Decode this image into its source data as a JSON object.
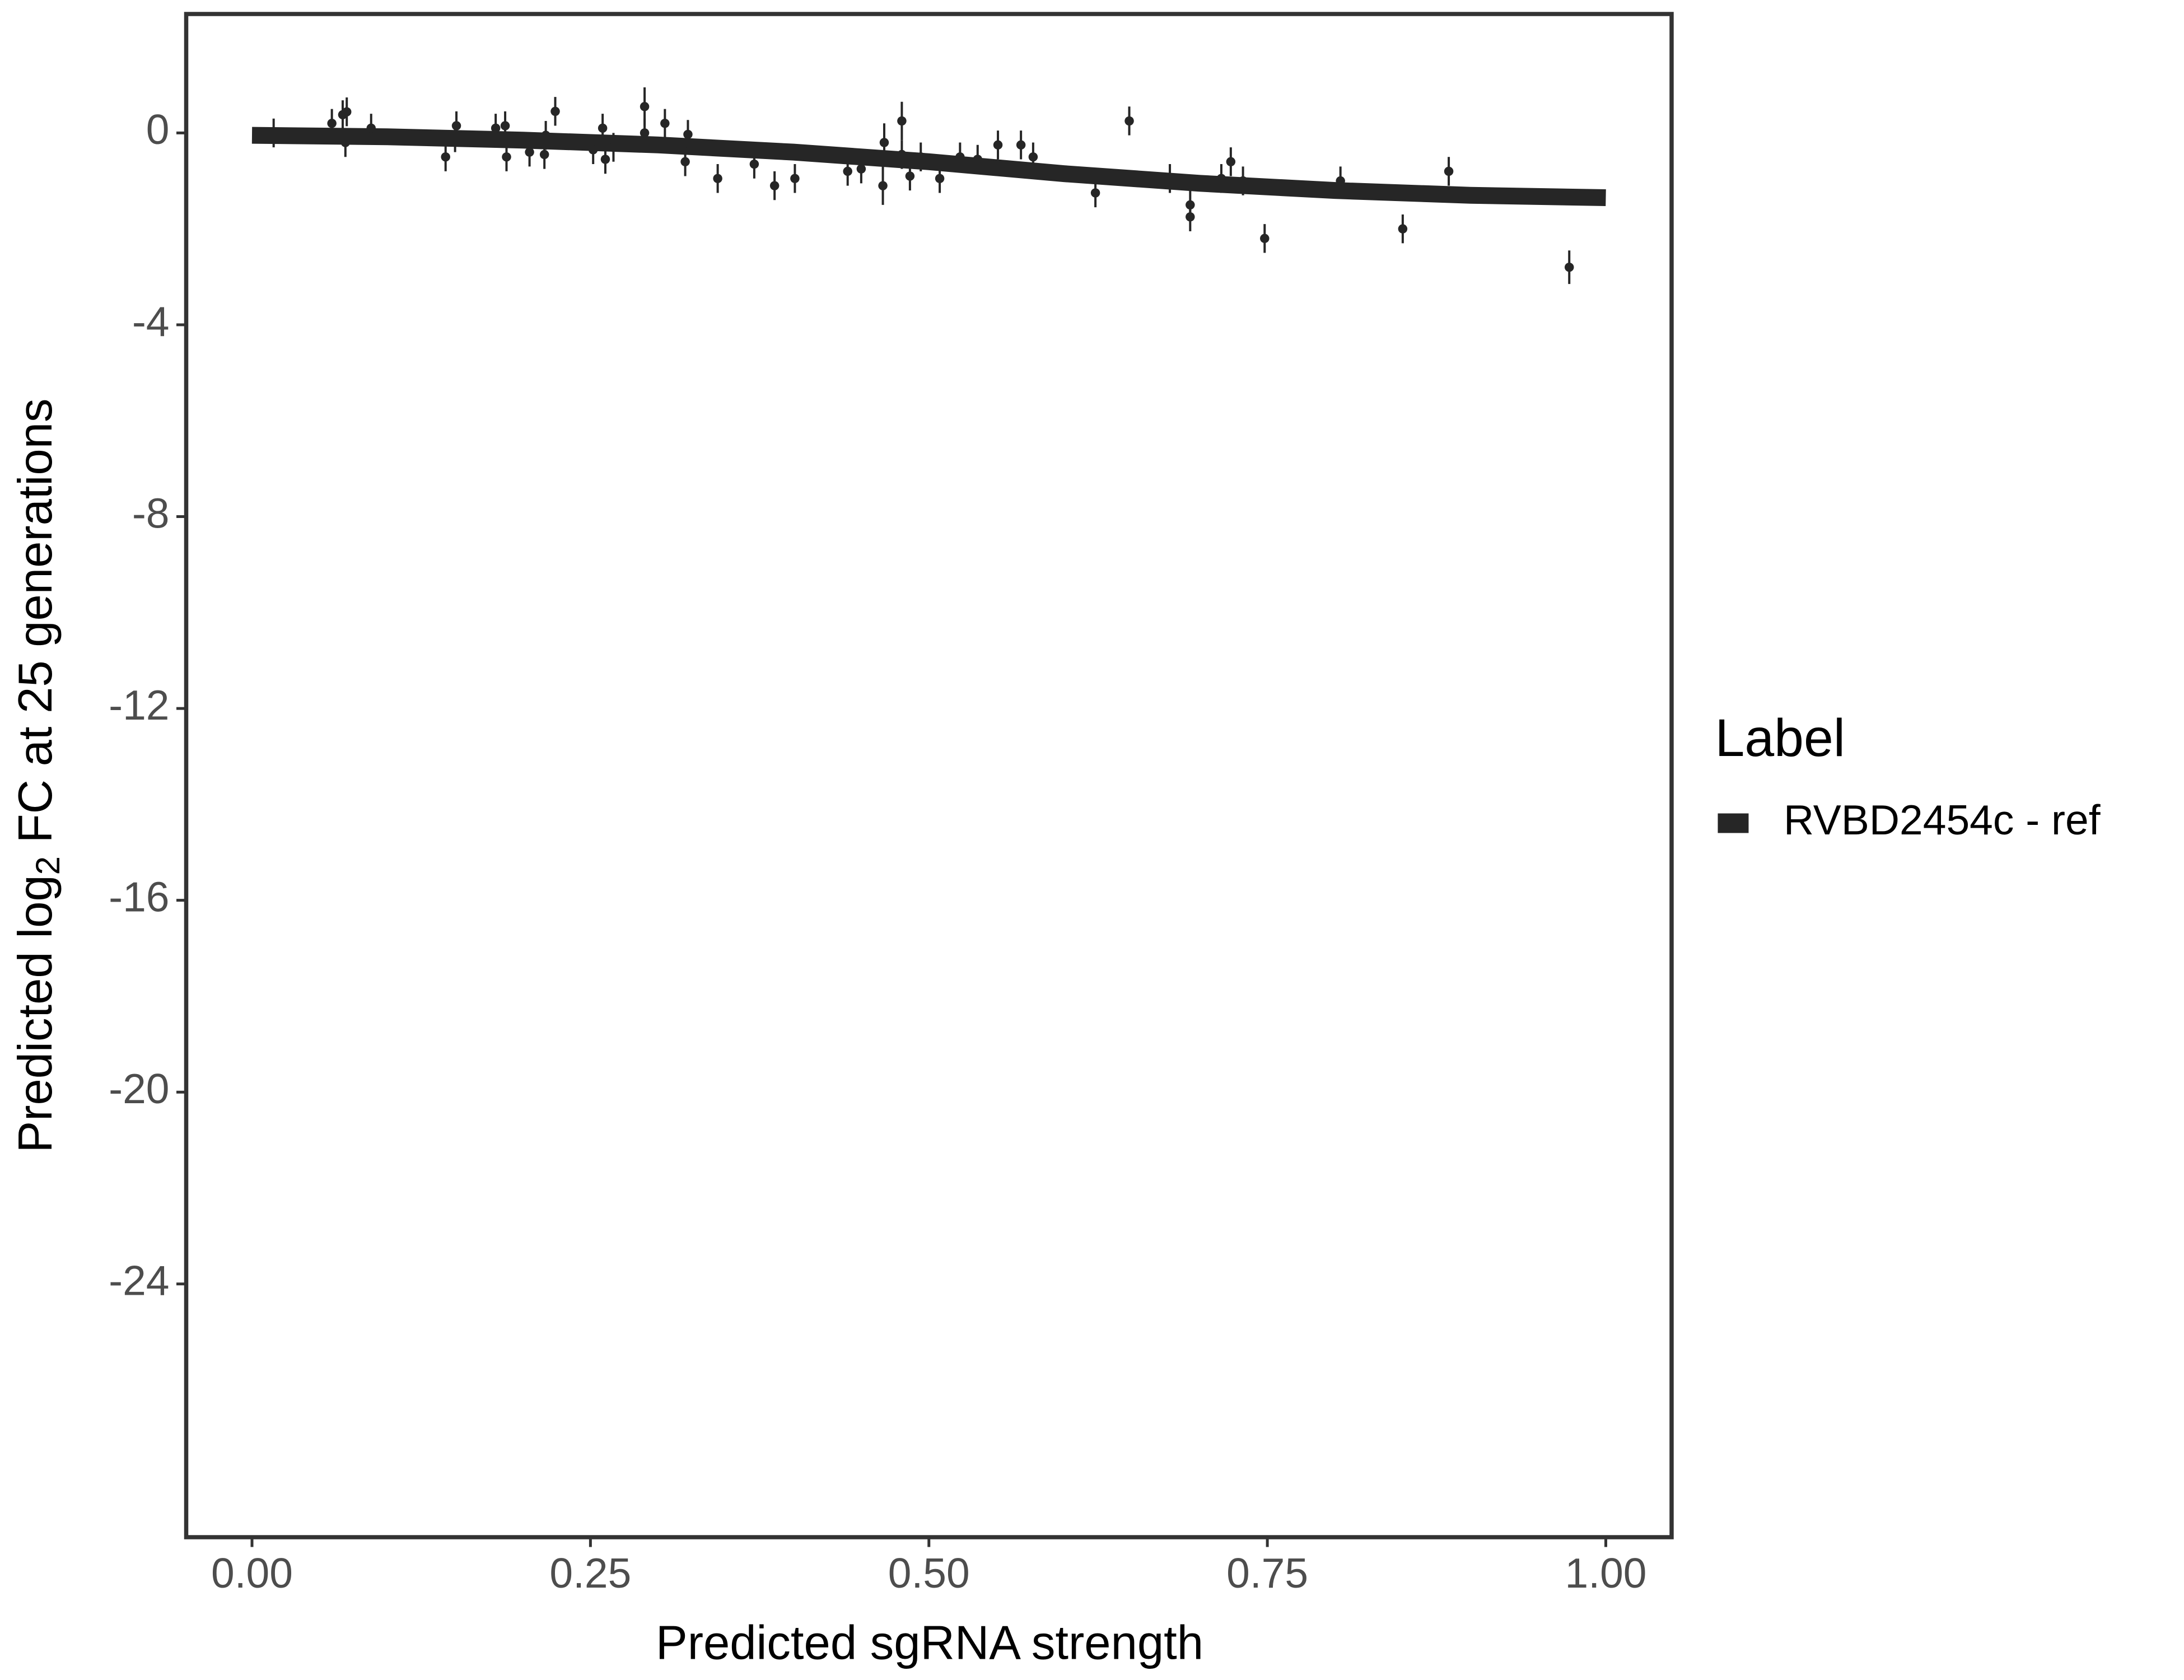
{
  "chart_data": {
    "type": "scatter",
    "xlabel": "Predicted sgRNA strength",
    "ylabel": {
      "pre": "Predicted  log",
      "sub": "2",
      "post": " FC at 25 generations"
    },
    "legend_title": "Label",
    "legend": "right",
    "xlim": [
      -0.0486,
      1.0486
    ],
    "ylim": [
      -29.28,
      2.48
    ],
    "xticks": [
      {
        "value": 0,
        "label": "0.00"
      },
      {
        "value": 0.25,
        "label": "0.25"
      },
      {
        "value": 0.5,
        "label": "0.50"
      },
      {
        "value": 0.75,
        "label": "0.75"
      },
      {
        "value": 1,
        "label": "1.00"
      }
    ],
    "yticks": [
      0,
      -4,
      -8,
      -12,
      -16,
      -20,
      -24
    ],
    "series": [
      {
        "name": "RVBD2454c - ref",
        "color": "#262626",
        "x": [
          0.016,
          0.059,
          0.067,
          0.07,
          0.069,
          0.088,
          0.143,
          0.15,
          0.151,
          0.18,
          0.187,
          0.188,
          0.205,
          0.216,
          0.217,
          0.224,
          0.252,
          0.259,
          0.261,
          0.267,
          0.29,
          0.29,
          0.305,
          0.32,
          0.322,
          0.344,
          0.371,
          0.386,
          0.401,
          0.44,
          0.45,
          0.466,
          0.467,
          0.48,
          0.48,
          0.486,
          0.494,
          0.508,
          0.523,
          0.536,
          0.551,
          0.568,
          0.577,
          0.623,
          0.648,
          0.678,
          0.693,
          0.693,
          0.716,
          0.723,
          0.732,
          0.748,
          0.804,
          0.85,
          0.884,
          0.973
        ],
        "values": [
          0,
          0.2,
          0.38,
          0.44,
          -0.2,
          0.1,
          -0.5,
          -0.1,
          0.15,
          0.1,
          0.15,
          -0.5,
          -0.4,
          -0.45,
          -0.05,
          0.45,
          -0.35,
          0.1,
          -0.55,
          -0.3,
          0.55,
          0,
          0.2,
          -0.6,
          -0.03,
          -0.95,
          -0.65,
          -1.1,
          -0.95,
          -0.8,
          -0.75,
          -1.1,
          -0.2,
          0.25,
          -0.45,
          -0.9,
          -0.5,
          -0.95,
          -0.5,
          -0.55,
          -0.25,
          -0.25,
          -0.5,
          -1.25,
          0.25,
          -0.95,
          -1.5,
          -1.75,
          -0.95,
          -0.6,
          -1,
          -2.2,
          -1,
          -2,
          -0.8,
          -2.8
        ],
        "errors": [
          0.3,
          0.3,
          0.3,
          0.3,
          0.3,
          0.3,
          0.3,
          0.3,
          0.3,
          0.3,
          0.3,
          0.3,
          0.3,
          0.3,
          0.3,
          0.3,
          0.3,
          0.3,
          0.3,
          0.3,
          0.4,
          0.3,
          0.3,
          0.3,
          0.3,
          0.3,
          0.3,
          0.3,
          0.3,
          0.3,
          0.3,
          0.4,
          0.4,
          0.4,
          0.3,
          0.3,
          0.3,
          0.3,
          0.3,
          0.3,
          0.3,
          0.3,
          0.3,
          0.3,
          0.3,
          0.3,
          0.3,
          0.3,
          0.3,
          0.3,
          0.3,
          0.3,
          0.3,
          0.3,
          0.3,
          0.35
        ],
        "fit": {
          "x": [
            0,
            0.1,
            0.2,
            0.3,
            0.4,
            0.5,
            0.6,
            0.7,
            0.8,
            0.9,
            1
          ],
          "values": [
            -0.05,
            -0.08,
            -0.15,
            -0.25,
            -0.4,
            -0.6,
            -0.85,
            -1.05,
            -1.2,
            -1.3,
            -1.35
          ]
        }
      }
    ]
  }
}
